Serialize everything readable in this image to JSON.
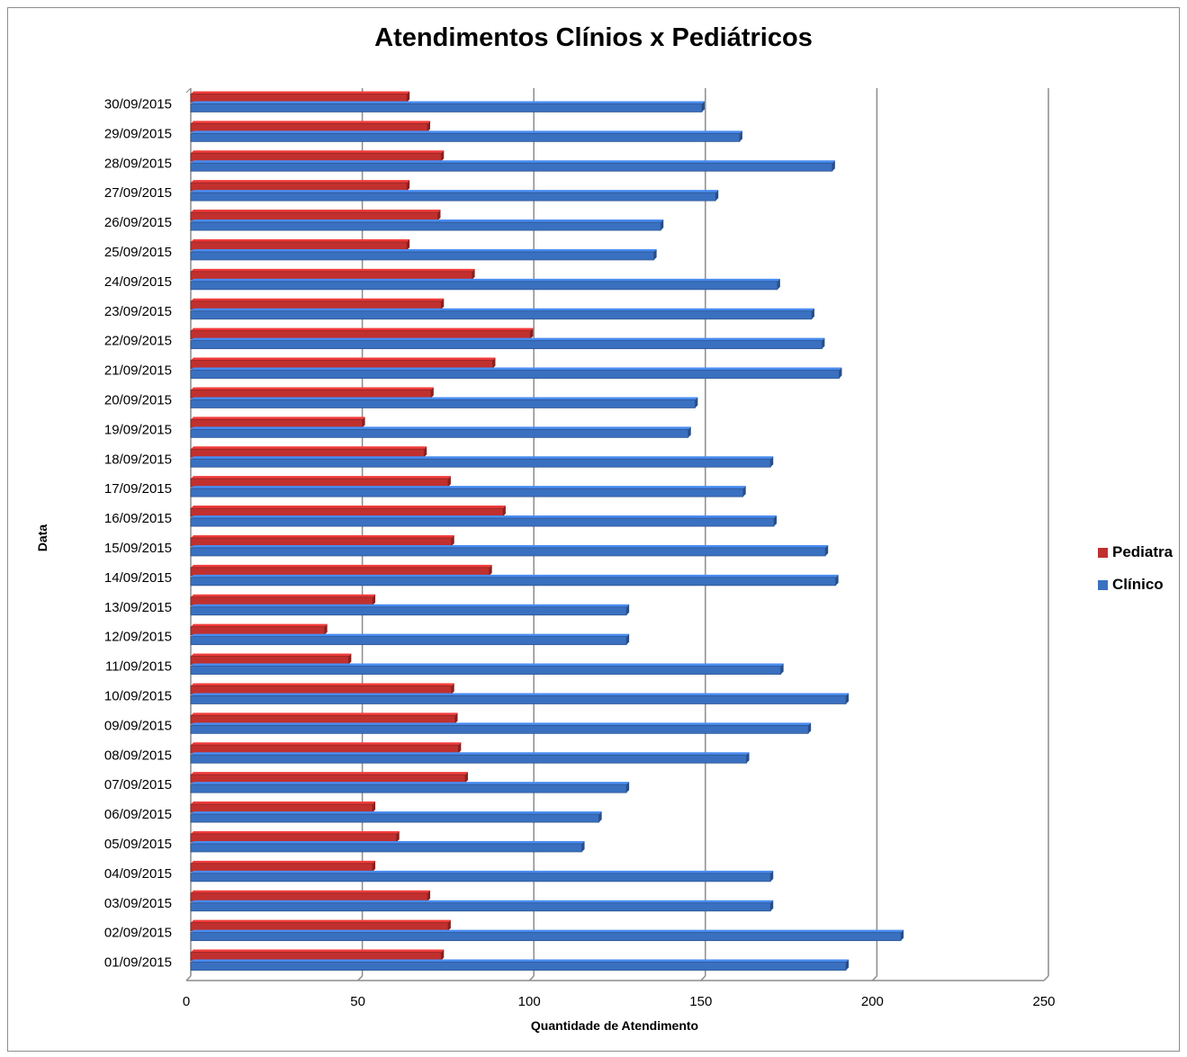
{
  "chart_data": {
    "type": "bar",
    "orientation": "horizontal",
    "title": "Atendimentos Clínios x Pediátricos",
    "xlabel": "Quantidade de Atendimento",
    "ylabel": "Data",
    "xlim": [
      0,
      250
    ],
    "xticks": [
      "0",
      "50",
      "100",
      "150",
      "200",
      "250"
    ],
    "grid": "vertical",
    "legend_position": "right",
    "categories": [
      "01/09/2015",
      "02/09/2015",
      "03/09/2015",
      "04/09/2015",
      "05/09/2015",
      "06/09/2015",
      "07/09/2015",
      "08/09/2015",
      "09/09/2015",
      "10/09/2015",
      "11/09/2015",
      "12/09/2015",
      "13/09/2015",
      "14/09/2015",
      "15/09/2015",
      "16/09/2015",
      "17/09/2015",
      "18/09/2015",
      "19/09/2015",
      "20/09/2015",
      "21/09/2015",
      "22/09/2015",
      "23/09/2015",
      "24/09/2015",
      "25/09/2015",
      "26/09/2015",
      "27/09/2015",
      "28/09/2015",
      "29/09/2015",
      "30/09/2015"
    ],
    "series": [
      {
        "name": "Pediatra",
        "color": "#c0302e",
        "values": [
          73,
          75,
          69,
          53,
          60,
          53,
          80,
          78,
          77,
          76,
          46,
          39,
          53,
          87,
          76,
          91,
          75,
          68,
          50,
          70,
          88,
          99,
          73,
          82,
          63,
          72,
          63,
          73,
          69,
          63
        ]
      },
      {
        "name": "Clínico",
        "color": "#3a70c0",
        "values": [
          191,
          207,
          169,
          169,
          114,
          119,
          127,
          162,
          180,
          191,
          172,
          127,
          127,
          188,
          185,
          170,
          161,
          169,
          145,
          147,
          189,
          184,
          181,
          171,
          135,
          137,
          153,
          187,
          160,
          149
        ]
      }
    ]
  }
}
